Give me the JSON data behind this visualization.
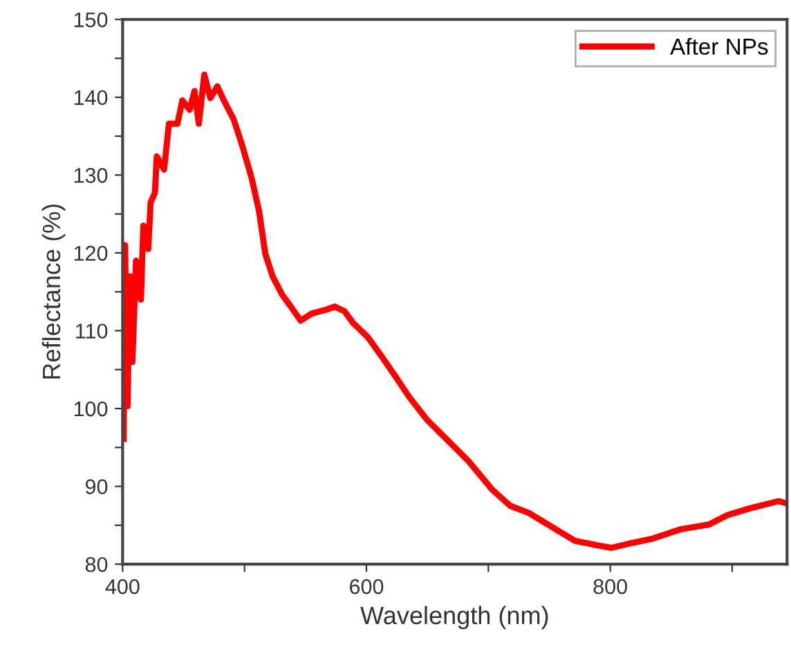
{
  "chart_data": {
    "type": "line",
    "xlabel": "Wavelength (nm)",
    "ylabel": "Reflectance (%)",
    "xlim": [
      400,
      945
    ],
    "ylim": [
      80,
      150
    ],
    "xticks": [
      400,
      {
        "value": 500,
        "label": null
      },
      600,
      {
        "value": 700,
        "label": null
      },
      800,
      {
        "value": 900,
        "label": null
      }
    ],
    "yticks": [
      80,
      {
        "value": 85,
        "label": null
      },
      90,
      {
        "value": 95,
        "label": null
      },
      100,
      {
        "value": 105,
        "label": null
      },
      110,
      {
        "value": 115,
        "label": null
      },
      120,
      {
        "value": 125,
        "label": null
      },
      130,
      {
        "value": 135,
        "label": null
      },
      140,
      {
        "value": 145,
        "label": null
      },
      150
    ],
    "grid": false,
    "legend": "top right",
    "marker": "none",
    "line_style": "solid",
    "x": [
      400.8,
      402,
      404,
      406,
      408,
      411,
      415,
      417,
      421,
      423,
      426.5,
      428,
      434,
      438,
      445,
      449,
      455,
      459,
      462.5,
      467,
      472,
      477.7,
      483,
      491,
      498.5,
      506,
      512,
      517,
      523,
      531,
      538,
      546,
      555,
      567,
      574,
      582,
      589,
      601,
      612,
      623.5,
      635,
      650,
      661,
      684,
      703,
      718,
      733,
      752,
      771,
      790,
      801,
      817,
      835,
      858,
      881,
      896,
      915,
      938,
      945
    ],
    "series": [
      {
        "name": "After NPs",
        "color": "#ff0000",
        "values": [
          96.1,
          121,
          100.3,
          117,
          106,
          119,
          114,
          123.5,
          120.5,
          126.5,
          127.7,
          132.4,
          130.7,
          136.6,
          136.6,
          139.6,
          138.4,
          140.8,
          136.6,
          142.9,
          139.9,
          141.4,
          139.6,
          137.2,
          133.6,
          129.5,
          125.3,
          119.9,
          117,
          114.6,
          113.1,
          111.3,
          112.2,
          112.7,
          113.1,
          112.5,
          111,
          109.2,
          106.8,
          104.2,
          101.5,
          98.5,
          96.8,
          93.2,
          89.6,
          87.5,
          86.6,
          84.8,
          83,
          82.4,
          82.1,
          82.7,
          83.3,
          84.5,
          85.1,
          86.3,
          87.2,
          88.1,
          87.8
        ]
      }
    ]
  }
}
